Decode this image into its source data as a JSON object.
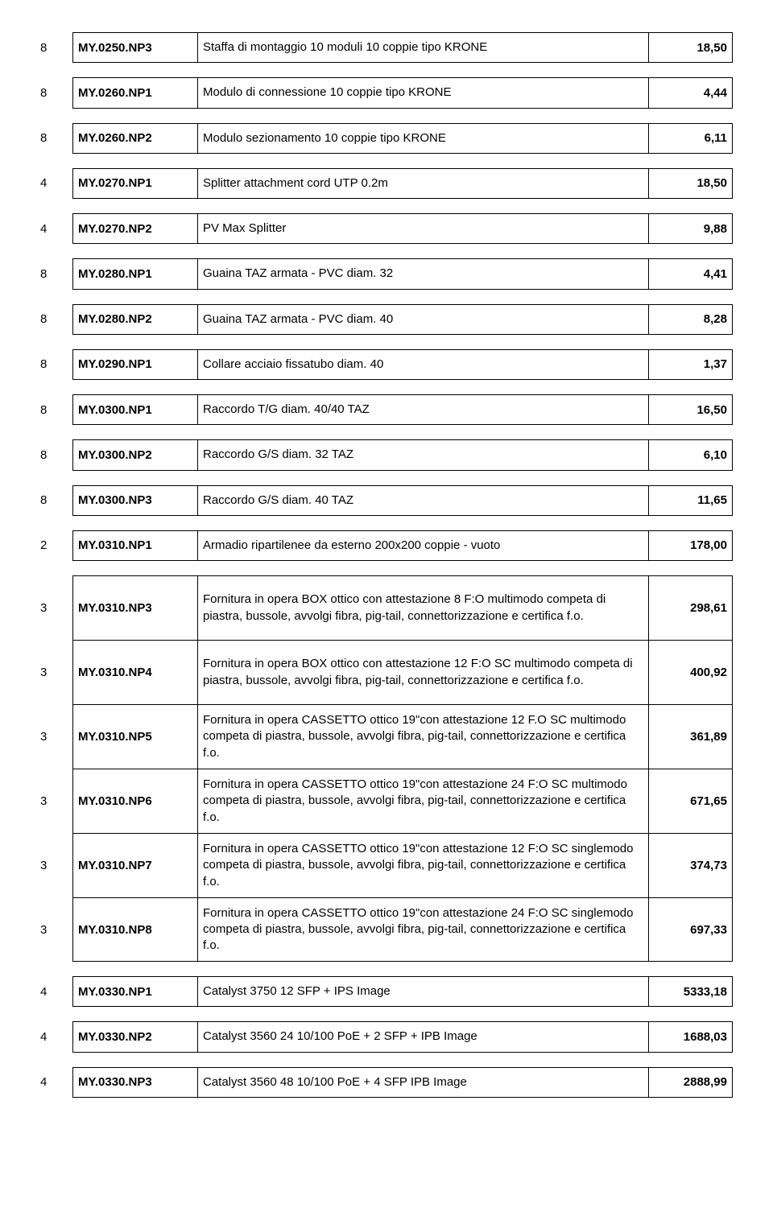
{
  "rows": [
    {
      "n": "8",
      "code": "MY.0250.NP3",
      "desc": "Staffa di montaggio 10 moduli 10 coppie tipo KRONE",
      "price": "18,50"
    },
    {
      "n": "8",
      "code": "MY.0260.NP1",
      "desc": "Modulo di connessione 10 coppie tipo KRONE",
      "price": "4,44"
    },
    {
      "n": "8",
      "code": "MY.0260.NP2",
      "desc": "Modulo sezionamento 10 coppie tipo KRONE",
      "price": "6,11"
    },
    {
      "n": "4",
      "code": "MY.0270.NP1",
      "desc": "Splitter attachment cord UTP 0.2m",
      "price": "18,50"
    },
    {
      "n": "4",
      "code": "MY.0270.NP2",
      "desc": "PV Max Splitter",
      "price": "9,88"
    },
    {
      "n": "8",
      "code": "MY.0280.NP1",
      "desc": "Guaina TAZ armata  - PVC diam. 32",
      "price": "4,41"
    },
    {
      "n": "8",
      "code": "MY.0280.NP2",
      "desc": "Guaina TAZ armata  - PVC diam. 40",
      "price": "8,28"
    },
    {
      "n": "8",
      "code": "MY.0290.NP1",
      "desc": "Collare acciaio fissatubo diam. 40",
      "price": "1,37"
    },
    {
      "n": "8",
      "code": "MY.0300.NP1",
      "desc": "Raccordo T/G diam. 40/40 TAZ",
      "price": "16,50"
    },
    {
      "n": "8",
      "code": "MY.0300.NP2",
      "desc": "Raccordo G/S diam. 32 TAZ",
      "price": "6,10"
    },
    {
      "n": "8",
      "code": "MY.0300.NP3",
      "desc": "Raccordo G/S diam. 40 TAZ",
      "price": "11,65"
    },
    {
      "n": "2",
      "code": "MY.0310.NP1",
      "desc": "Armadio ripartilenee da esterno 200x200 coppie - vuoto",
      "price": "178,00"
    }
  ],
  "group": [
    {
      "n": "3",
      "code": "MY.0310.NP3",
      "desc": "Fornitura in opera BOX ottico con attestazione 8 F:O multimodo competa di piastra, bussole, avvolgi fibra, pig-tail, connettorizzazione e certifica f.o.",
      "price": "298,61"
    },
    {
      "n": "3",
      "code": "MY.0310.NP4",
      "desc": "Fornitura in opera BOX ottico con attestazione 12 F:O SC multimodo competa di piastra, bussole, avvolgi fibra, pig-tail, connettorizzazione e certifica f.o.",
      "price": "400,92"
    },
    {
      "n": "3",
      "code": "MY.0310.NP5",
      "desc": "Fornitura in opera CASSETTO ottico 19\"con attestazione 12 F.O SC multimodo competa di piastra, bussole, avvolgi fibra, pig-tail, connettorizzazione e certifica f.o.",
      "price": "361,89"
    },
    {
      "n": "3",
      "code": "MY.0310.NP6",
      "desc": "Fornitura in opera CASSETTO ottico 19\"con attestazione 24 F:O SC multimodo competa di piastra, bussole, avvolgi fibra, pig-tail, connettorizzazione e certifica f.o.",
      "price": "671,65"
    },
    {
      "n": "3",
      "code": "MY.0310.NP7",
      "desc": "Fornitura in opera CASSETTO ottico 19\"con attestazione 12 F:O SC singlemodo competa di piastra, bussole, avvolgi fibra, pig-tail, connettorizzazione e certifica f.o.",
      "price": "374,73"
    },
    {
      "n": "3",
      "code": "MY.0310.NP8",
      "desc": "Fornitura in opera CASSETTO ottico 19\"con attestazione 24 F:O SC singlemodo competa di piastra, bussole, avvolgi fibra, pig-tail, connettorizzazione e certifica f.o.",
      "price": "697,33"
    }
  ],
  "rows2": [
    {
      "n": "4",
      "code": "MY.0330.NP1",
      "desc": "Catalyst 3750 12 SFP + IPS Image",
      "price": "5333,18"
    },
    {
      "n": "4",
      "code": "MY.0330.NP2",
      "desc": "Catalyst 3560 24 10/100 PoE + 2 SFP + IPB Image",
      "price": "1688,03"
    },
    {
      "n": "4",
      "code": "MY.0330.NP3",
      "desc": "Catalyst 3560 48 10/100 PoE + 4 SFP IPB Image",
      "price": "2888,99"
    }
  ]
}
